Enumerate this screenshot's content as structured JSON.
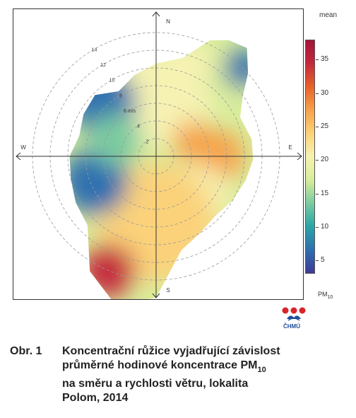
{
  "chart_data": {
    "type": "heatmap",
    "subtype": "polar-plot",
    "legend_title": "mean",
    "colorbar": {
      "ticks": [
        5,
        10,
        15,
        20,
        25,
        30,
        35
      ],
      "range": [
        3,
        38
      ],
      "label": "PM",
      "label_sub": "10",
      "colors": [
        "#3c3a97",
        "#2f6fb0",
        "#2aa6a6",
        "#7ccba0",
        "#d8ed9c",
        "#f6f2b2",
        "#fbd27a",
        "#f7a24a",
        "#e8622c",
        "#c42a3c",
        "#a5133a"
      ]
    },
    "directions": {
      "N": "N",
      "E": "E",
      "S": "S",
      "W": "W"
    },
    "radial_axis": {
      "ticks": [
        2,
        4,
        6,
        8,
        10,
        12,
        14
      ],
      "unit": "m/s"
    },
    "regions": [
      {
        "direction": "N",
        "speed_range": [
          3,
          10
        ],
        "mean": 20
      },
      {
        "direction": "NNE",
        "speed_range": [
          6,
          12
        ],
        "mean": 19
      },
      {
        "direction": "NE",
        "speed_range": [
          10,
          14
        ],
        "mean": 17
      },
      {
        "direction": "NE",
        "speed_range": [
          13,
          15
        ],
        "mean": 6
      },
      {
        "direction": "ENE",
        "speed_range": [
          3,
          6
        ],
        "mean": 27
      },
      {
        "direction": "E",
        "speed_range": [
          5,
          9
        ],
        "mean": 29
      },
      {
        "direction": "SE",
        "speed_range": [
          4,
          9
        ],
        "mean": 20
      },
      {
        "direction": "S",
        "speed_range": [
          3,
          12
        ],
        "mean": 23
      },
      {
        "direction": "SSW",
        "speed_range": [
          12,
          16
        ],
        "mean": 34
      },
      {
        "direction": "WSW",
        "speed_range": [
          5,
          10
        ],
        "mean": 8
      },
      {
        "direction": "NW",
        "speed_range": [
          6,
          11
        ],
        "mean": 5
      },
      {
        "direction": "WNW",
        "speed_range": [
          3,
          7
        ],
        "mean": 14
      }
    ]
  },
  "logo": {
    "text": "ČHMÚ"
  },
  "caption": {
    "prefix": "Obr. 1",
    "line1": "Koncentrační růžice vyjadřující závislost",
    "line2_main": "průměrné hodinové koncentrace PM",
    "line2_sub": "10",
    "line3": "na směru a rychlosti větru, lokalita",
    "line4": "Polom, 2014"
  }
}
